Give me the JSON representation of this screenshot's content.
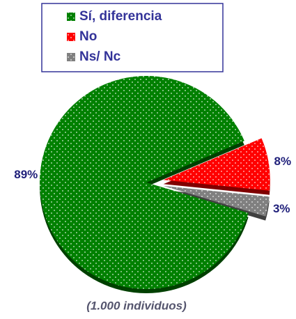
{
  "chart_data": {
    "type": "pie",
    "categories": [
      "Sí, diferencia",
      "No",
      "Ns/ Nc"
    ],
    "values": [
      89,
      8,
      3
    ],
    "value_labels": [
      "89%",
      "8%",
      "3%"
    ],
    "colors": [
      "#008000",
      "#ff0000",
      "#808080"
    ],
    "annotation": "(1.000 individuos)"
  }
}
